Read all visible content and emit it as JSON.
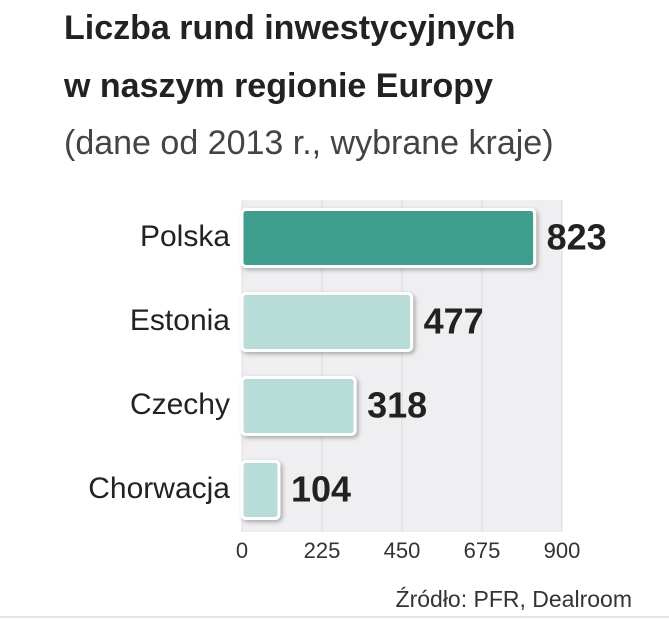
{
  "chart_data": {
    "type": "hbar",
    "title": [
      "Liczba rund inwestycyjnych",
      "w naszym regionie Europy"
    ],
    "subtitle": "(dane od 2013 r., wybrane kraje)",
    "categories": [
      "Polska",
      "Estonia",
      "Czechy",
      "Chorwacja"
    ],
    "values": [
      823,
      477,
      318,
      104
    ],
    "colors": [
      "#3f9e8f",
      "#b8dcd8",
      "#b8dcd8",
      "#b8dcd8"
    ],
    "xlim": [
      0,
      900
    ],
    "xticks": [
      0,
      225,
      450,
      675,
      900
    ],
    "grid": true,
    "source": "Źródło: PFR, Dealroom"
  }
}
